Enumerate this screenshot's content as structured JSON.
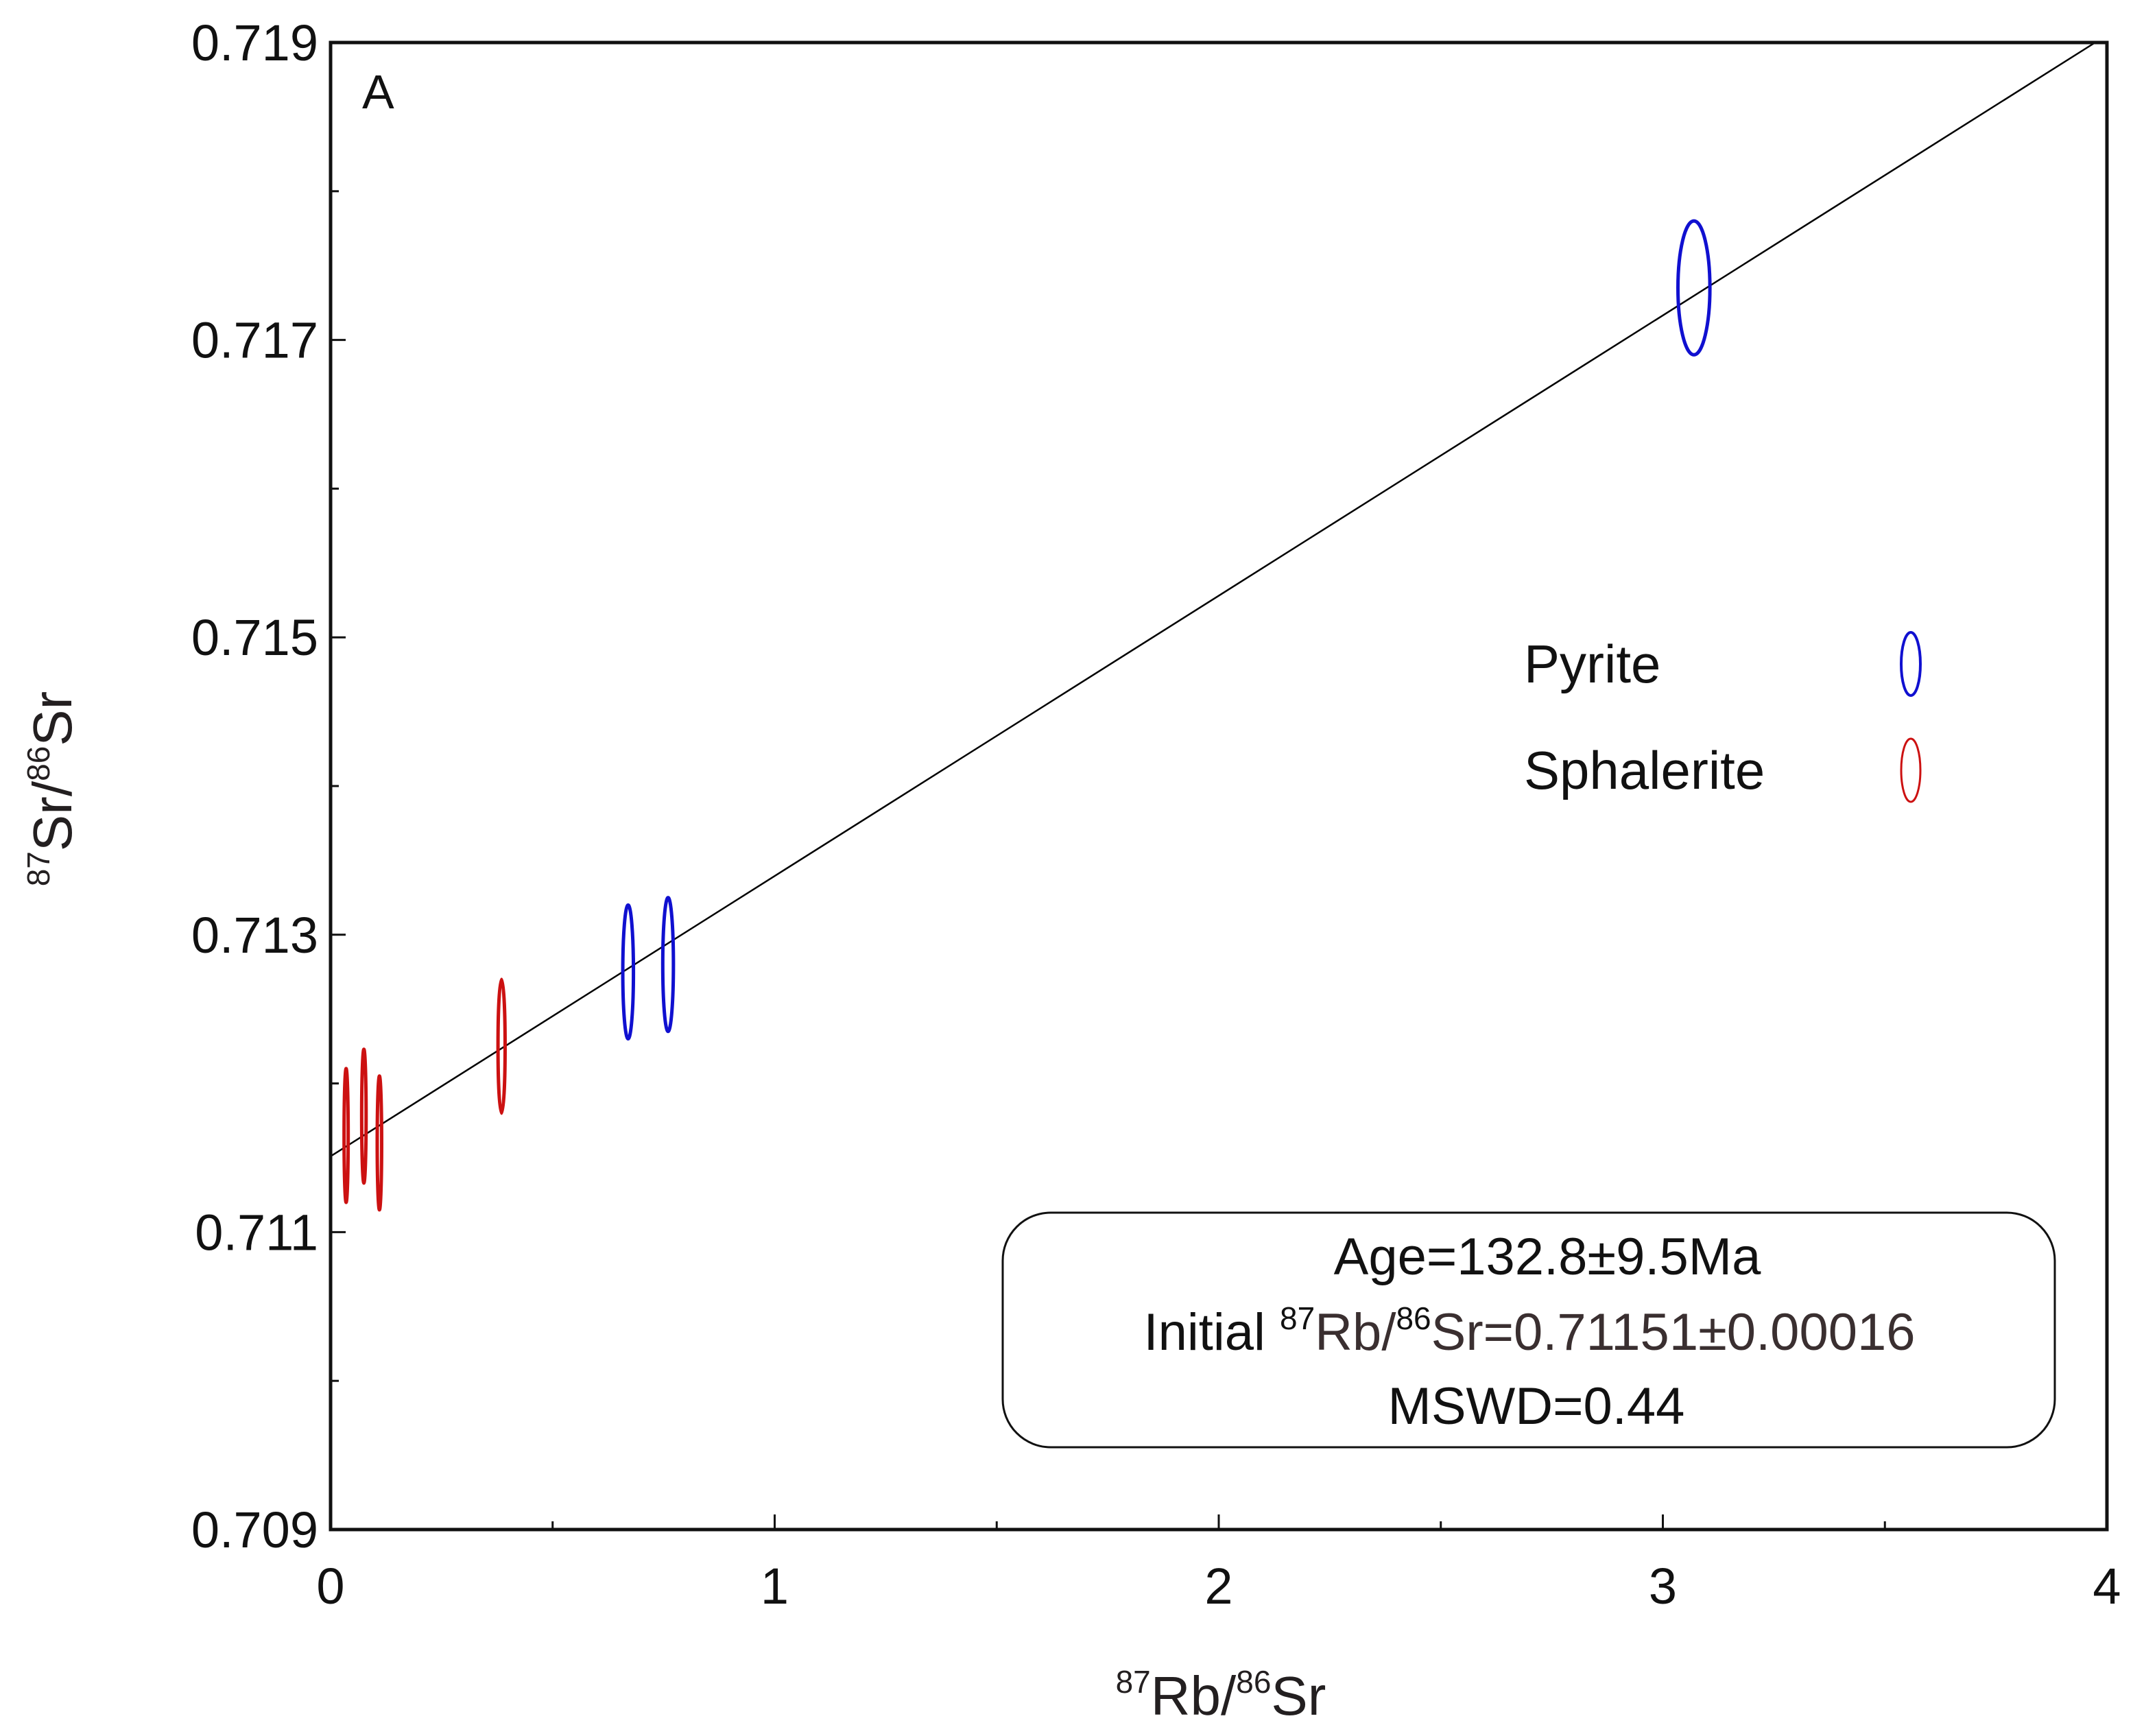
{
  "chart_data": {
    "type": "scatter",
    "panel_label": "A",
    "xaxis": {
      "range": [
        0,
        4
      ],
      "ticks": [
        0,
        1,
        2,
        3,
        4
      ],
      "tick_labels": [
        "0",
        "1",
        "2",
        "3",
        "4"
      ],
      "minor_ticks": [
        0.5,
        1.5,
        2.5,
        3.5
      ],
      "title": {
        "sup1": "87",
        "base1": "Rb/",
        "sup2": "86",
        "base2": "Sr"
      }
    },
    "yaxis": {
      "range": [
        0.709,
        0.719
      ],
      "ticks": [
        0.709,
        0.711,
        0.713,
        0.715,
        0.717,
        0.719
      ],
      "tick_labels": [
        "0.709",
        "0.711",
        "0.713",
        "0.715",
        "0.717",
        "0.719"
      ],
      "minor_ticks": [
        0.71,
        0.712,
        0.714,
        0.716,
        0.718
      ],
      "title": {
        "sup1": "87",
        "base1": "Sr/",
        "sup2": "86",
        "base2": "Sr"
      }
    },
    "series": [
      {
        "name": "Pyrite",
        "color": "#1010d0",
        "points": [
          {
            "x": 0.67,
            "y": 0.71275,
            "x_err": 0.012,
            "y_err": 0.00045
          },
          {
            "x": 0.76,
            "y": 0.7128,
            "x_err": 0.012,
            "y_err": 0.00045
          },
          {
            "x": 3.07,
            "y": 0.71735,
            "x_err": 0.036,
            "y_err": 0.00045
          }
        ]
      },
      {
        "name": "Sphalerite",
        "color": "#cc1111",
        "points": [
          {
            "x": 0.035,
            "y": 0.71165,
            "x_err": 0.004,
            "y_err": 0.00045
          },
          {
            "x": 0.075,
            "y": 0.71178,
            "x_err": 0.005,
            "y_err": 0.00045
          },
          {
            "x": 0.11,
            "y": 0.7116,
            "x_err": 0.005,
            "y_err": 0.00045
          },
          {
            "x": 0.385,
            "y": 0.71225,
            "x_err": 0.008,
            "y_err": 0.00045
          }
        ]
      }
    ],
    "regression": {
      "intercept": 0.71151,
      "slope": 0.001885,
      "color": "#000000"
    },
    "legend": {
      "position": "right-middle",
      "items": [
        {
          "label": "Pyrite",
          "color": "#1010d0"
        },
        {
          "label": "Sphalerite",
          "color": "#cc1111"
        }
      ]
    },
    "annotation": {
      "position": "bottom-right",
      "line1": "Age=132.8±9.5Ma",
      "line2": {
        "prefix": "Initial ",
        "sup1": "87",
        "base1": "Rb/",
        "sup2": "86",
        "base2": "Sr=0.71151±0.00016"
      },
      "line3": "MSWD=0.44"
    }
  }
}
